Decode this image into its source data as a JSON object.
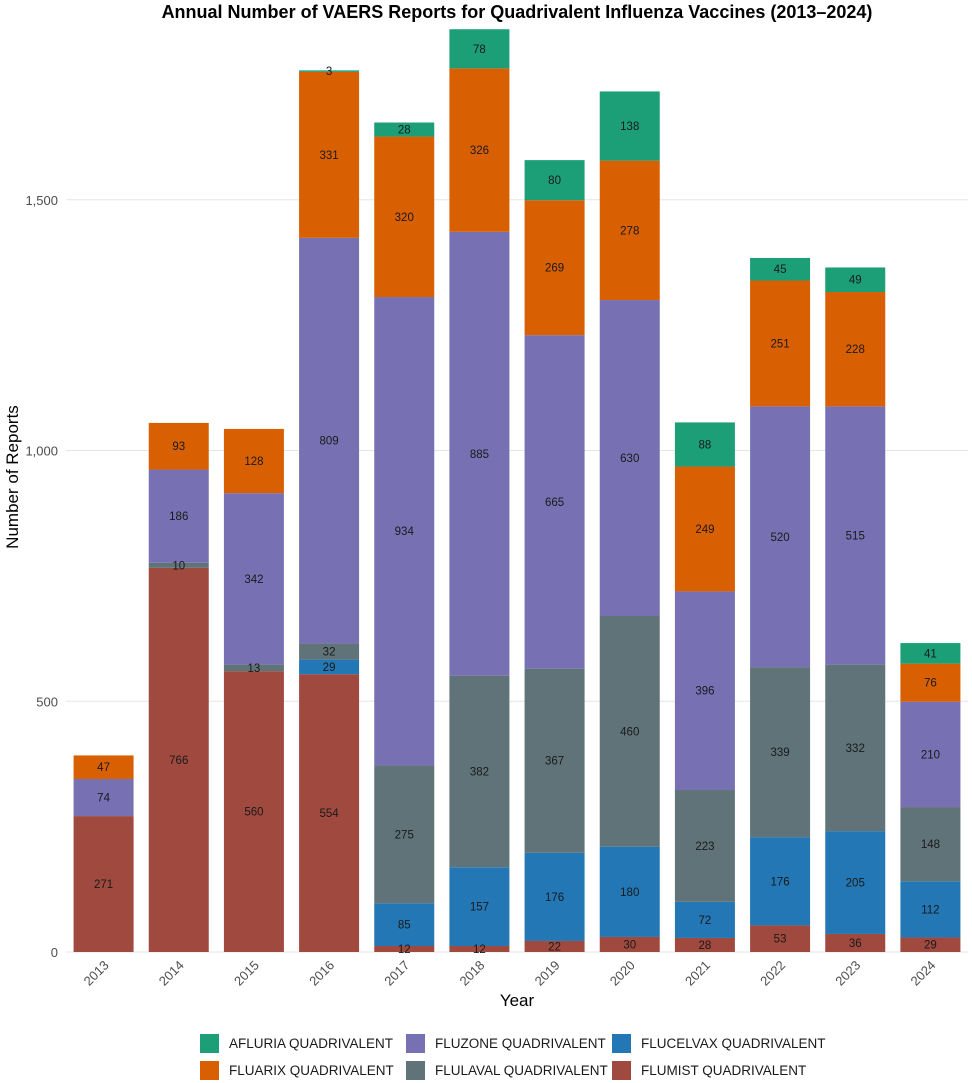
{
  "chart_data": {
    "type": "bar",
    "stacked": true,
    "title": "Annual Number of VAERS Reports for Quadrivalent Influenza Vaccines (2013–2024)",
    "xlabel": "Year",
    "ylabel": "Number of Reports",
    "ylim": [
      0,
      1850
    ],
    "y_ticks": [
      0,
      500,
      1000,
      1500
    ],
    "y_tick_labels": [
      "0",
      "500",
      "1,000",
      "1,500"
    ],
    "grid": true,
    "legend_position": "bottom",
    "categories": [
      "2013",
      "2014",
      "2015",
      "2016",
      "2017",
      "2018",
      "2019",
      "2020",
      "2021",
      "2022",
      "2023",
      "2024"
    ],
    "series": [
      {
        "name": "FLUMIST QUADRIVALENT",
        "color": "#a0493f",
        "values": [
          271,
          766,
          560,
          554,
          12,
          12,
          22,
          30,
          28,
          53,
          36,
          29
        ]
      },
      {
        "name": "FLUCELVAX QUADRIVALENT",
        "color": "#2377b4",
        "values": [
          null,
          null,
          null,
          29,
          85,
          157,
          176,
          180,
          72,
          176,
          205,
          112
        ]
      },
      {
        "name": "FLULAVAL QUADRIVALENT",
        "color": "#5f7378",
        "values": [
          null,
          10,
          13,
          32,
          275,
          382,
          367,
          460,
          223,
          339,
          332,
          148
        ]
      },
      {
        "name": "FLUZONE QUADRIVALENT",
        "color": "#7770b2",
        "values": [
          74,
          186,
          342,
          809,
          934,
          885,
          665,
          630,
          396,
          520,
          515,
          210
        ]
      },
      {
        "name": "FLUARIX QUADRIVALENT",
        "color": "#d85f02",
        "values": [
          47,
          93,
          128,
          331,
          320,
          326,
          269,
          278,
          249,
          251,
          228,
          76
        ]
      },
      {
        "name": "AFLURIA QUADRIVALENT",
        "color": "#1c9e76",
        "values": [
          null,
          null,
          null,
          3,
          28,
          78,
          80,
          138,
          88,
          45,
          49,
          41
        ]
      }
    ],
    "legend_order": [
      "AFLURIA QUADRIVALENT",
      "FLUZONE QUADRIVALENT",
      "FLUCELVAX QUADRIVALENT",
      "FLUARIX QUADRIVALENT",
      "FLULAVAL QUADRIVALENT",
      "FLUMIST QUADRIVALENT"
    ]
  }
}
